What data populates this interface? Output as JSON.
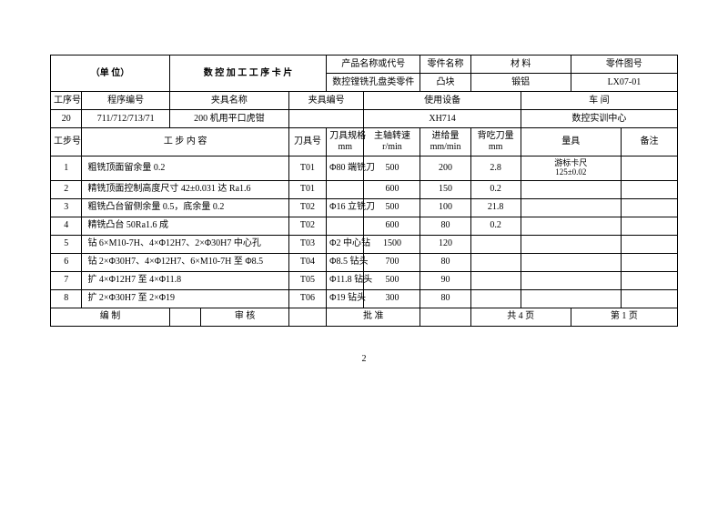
{
  "head": {
    "unit": "（单  位）",
    "title": "数 控 加 工 工 序 卡 片",
    "prodName": "产品名称或代号",
    "partName": "零件名称",
    "material": "材  料",
    "drawingNo": "零件图号",
    "prodNameV": "数控镗铣孔盘类零件",
    "partNameV": "凸块",
    "materialV": "锻铝",
    "drawingNoV": "LX07-01",
    "procNo": "工序号",
    "progNo": "程序编号",
    "fixtureName": "夹具名称",
    "fixtureNo": "夹具编号",
    "equip": "使用设备",
    "workshop": "车        间",
    "procNoV": "20",
    "progNoV": "711/712/713/71",
    "fixtureNameV": "200 机用平口虎钳",
    "fixtureNoV": "",
    "equipV": "XH714",
    "workshopV": "数控实训中心",
    "stepNo": "工步号",
    "stepContent": "工    步    内    容",
    "toolNo": "刀具号",
    "toolSpec1": "刀具规格",
    "toolSpec2": "mm",
    "spindle1": "主轴转速",
    "spindle2": "r/min",
    "feed1": "进给量",
    "feed2": "mm/min",
    "depth1": "背吃刀量",
    "depth2": "mm",
    "gauge": "量具",
    "remark": "备注"
  },
  "rows": [
    {
      "n": "1",
      "c": "粗铣顶面留余量 0.2",
      "t": "T01",
      "sp": "Φ80 端铣刀",
      "rpm": "500",
      "f": "200",
      "d": "2.8",
      "g": "游标卡尺125±0.02",
      "r": ""
    },
    {
      "n": "2",
      "c": "精铣顶面控制高度尺寸 42±0.031 达 Ra1.6",
      "t": "T01",
      "sp": "",
      "rpm": "600",
      "f": "150",
      "d": "0.2",
      "g": "",
      "r": ""
    },
    {
      "n": "3",
      "c": "粗铣凸台留侧余量 0.5，底余量 0.2",
      "t": "T02",
      "sp": "Φ16 立铣刀",
      "rpm": "500",
      "f": "100",
      "d": "21.8",
      "g": "",
      "r": ""
    },
    {
      "n": "4",
      "c": "精铣凸台 50Ra1.6 成",
      "t": "T02",
      "sp": "",
      "rpm": "600",
      "f": "80",
      "d": "0.2",
      "g": "",
      "r": ""
    },
    {
      "n": "5",
      "c": "钻 6×M10-7H、4×Φ12H7、2×Φ30H7 中心孔",
      "t": "T03",
      "sp": "Φ2 中心钻",
      "rpm": "1500",
      "f": "120",
      "d": "",
      "g": "",
      "r": ""
    },
    {
      "n": "6",
      "c": "钻 2×Φ30H7、4×Φ12H7、6×M10-7H 至 Φ8.5",
      "t": "T04",
      "sp": "Φ8.5 钻头",
      "rpm": "700",
      "f": "80",
      "d": "",
      "g": "",
      "r": ""
    },
    {
      "n": "7",
      "c": "扩 4×Φ12H7 至 4×Φ11.8",
      "t": "T05",
      "sp": "Φ11.8 钻头",
      "rpm": "500",
      "f": "90",
      "d": "",
      "g": "",
      "r": ""
    },
    {
      "n": "8",
      "c": "扩 2×Φ30H7 至 2×Φ19",
      "t": "T06",
      "sp": "Φ19 钻头",
      "rpm": "300",
      "f": "80",
      "d": "",
      "g": "",
      "r": ""
    }
  ],
  "foot": {
    "compile": "编       制",
    "audit": "审       核",
    "approve": "批       准",
    "totalPages": "共     4    页",
    "pageNo": "第    1    页"
  },
  "pagenum": "2"
}
